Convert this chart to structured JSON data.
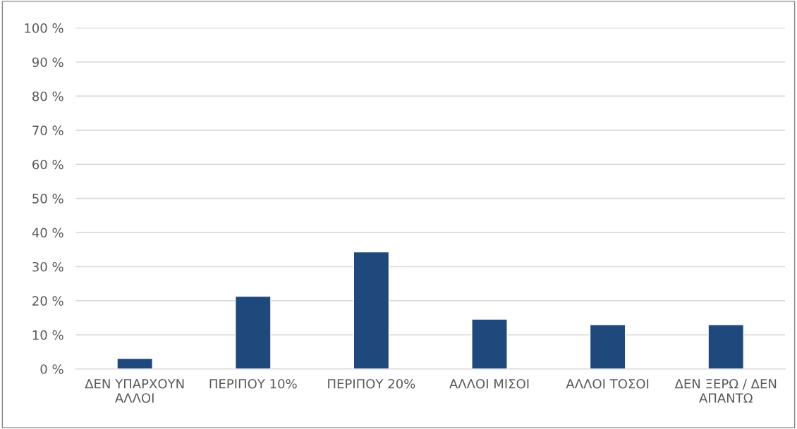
{
  "chart_data": {
    "type": "bar",
    "categories": [
      "ΔΕΝ ΥΠΑΡΧΟΥΝ ΑΛΛΟΙ",
      "ΠΕΡΙΠΟΥ 10%",
      "ΠΕΡΙΠΟΥ 20%",
      "ΑΛΛΟΙ ΜΙΣΟΙ",
      "ΑΛΛΟΙ ΤΟΣΟΙ",
      "ΔΕΝ ΞΕΡΩ / ΔΕΝ ΑΠΑΝΤΩ"
    ],
    "values": [
      3.1,
      21.3,
      34.3,
      14.6,
      13.0,
      13.0
    ],
    "color": "#1f497d",
    "ylim": [
      0,
      100
    ],
    "yticks": [
      {
        "value": 0,
        "label": "0 %"
      },
      {
        "value": 10,
        "label": "10 %"
      },
      {
        "value": 20,
        "label": "20 %"
      },
      {
        "value": 30,
        "label": "30 %"
      },
      {
        "value": 40,
        "label": "40 %"
      },
      {
        "value": 50,
        "label": "50 %"
      },
      {
        "value": 60,
        "label": "60 %"
      },
      {
        "value": 70,
        "label": "70 %"
      },
      {
        "value": 80,
        "label": "80 %"
      },
      {
        "value": 90,
        "label": "90 %"
      },
      {
        "value": 100,
        "label": "100 %"
      }
    ],
    "grid": "y"
  }
}
